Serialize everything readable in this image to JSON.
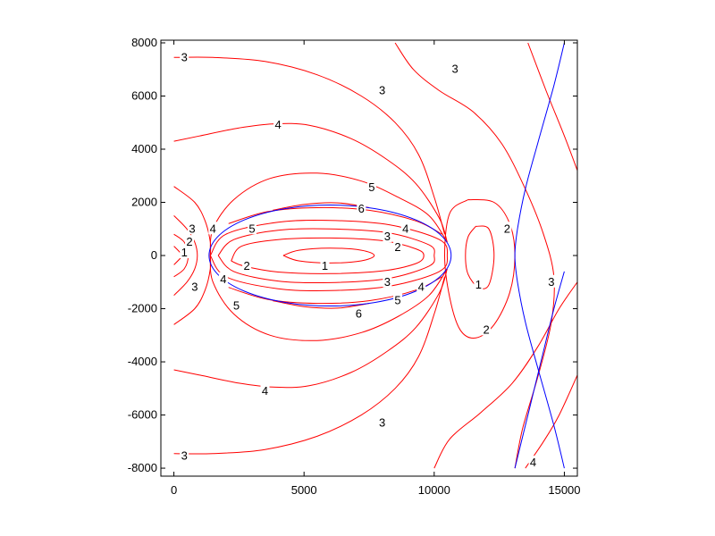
{
  "chart_data": {
    "type": "contour",
    "title": "",
    "xlabel": "",
    "ylabel": "",
    "xlim": [
      -500,
      15500
    ],
    "ylim": [
      -8300,
      8100
    ],
    "x_ticks": [
      {
        "value": 0,
        "label": "0"
      },
      {
        "value": 5000,
        "label": "5000"
      },
      {
        "value": 10000,
        "label": "10000"
      },
      {
        "value": 15000,
        "label": "15000"
      }
    ],
    "y_ticks": [
      {
        "value": 8000,
        "label": "8000"
      },
      {
        "value": 6000,
        "label": "6000"
      },
      {
        "value": 4000,
        "label": "4000"
      },
      {
        "value": 2000,
        "label": "2000"
      },
      {
        "value": 0,
        "label": "0"
      },
      {
        "value": -2000,
        "label": "-2000"
      },
      {
        "value": -4000,
        "label": "-4000"
      },
      {
        "value": -6000,
        "label": "-6000"
      },
      {
        "value": -8000,
        "label": "-8000"
      }
    ],
    "grid": false,
    "colors": {
      "contour": "#ff0000",
      "boundary": "#0000ff",
      "axes": "#000000"
    },
    "boundary_ellipse": {
      "cx": 6000,
      "cy": 0,
      "rx": 4650,
      "ry": 1900
    },
    "boundary_curves": [
      {
        "name": "",
        "points": [
          [
            15000,
            8000
          ],
          [
            14600,
            6400
          ],
          [
            14000,
            4300
          ],
          [
            13500,
            2500
          ],
          [
            13200,
            1000
          ],
          [
            13100,
            0
          ],
          [
            13200,
            -1000
          ],
          [
            13500,
            -2500
          ],
          [
            14000,
            -4300
          ],
          [
            14600,
            -6400
          ],
          [
            15000,
            -8000
          ]
        ]
      },
      {
        "name": "",
        "points": [
          [
            13100,
            -8000
          ],
          [
            13600,
            -6000
          ],
          [
            14100,
            -4000
          ],
          [
            14600,
            -2000
          ],
          [
            15000,
            -600
          ]
        ]
      }
    ],
    "contours": [
      {
        "level": 1,
        "points": [
          [
            4200,
            0
          ],
          [
            4800,
            200
          ],
          [
            6000,
            280
          ],
          [
            7200,
            200
          ],
          [
            7700,
            0
          ],
          [
            7200,
            -200
          ],
          [
            6000,
            -280
          ],
          [
            4800,
            -200
          ],
          [
            4200,
            0
          ]
        ]
      },
      {
        "level": 2,
        "points": [
          [
            2200,
            -200
          ],
          [
            2600,
            350
          ],
          [
            4000,
            600
          ],
          [
            6000,
            660
          ],
          [
            8000,
            560
          ],
          [
            9300,
            250
          ],
          [
            9600,
            0
          ],
          [
            9300,
            -300
          ],
          [
            8000,
            -580
          ],
          [
            6000,
            -680
          ],
          [
            4000,
            -620
          ],
          [
            2700,
            -400
          ],
          [
            2200,
            -200
          ]
        ]
      },
      {
        "level": 3,
        "points": [
          [
            1700,
            0
          ],
          [
            2300,
            600
          ],
          [
            4000,
            950
          ],
          [
            6000,
            1000
          ],
          [
            8200,
            860
          ],
          [
            9800,
            400
          ],
          [
            10000,
            0
          ],
          [
            9800,
            -400
          ],
          [
            8200,
            -870
          ],
          [
            6000,
            -1020
          ],
          [
            4000,
            -960
          ],
          [
            2300,
            -600
          ],
          [
            1700,
            0
          ]
        ]
      },
      {
        "level": 4,
        "points": [
          [
            1400,
            0
          ],
          [
            2000,
            800
          ],
          [
            4000,
            1250
          ],
          [
            6000,
            1320
          ],
          [
            8300,
            1150
          ],
          [
            10200,
            600
          ],
          [
            10500,
            0
          ],
          [
            10200,
            -600
          ],
          [
            8300,
            -1150
          ],
          [
            6000,
            -1320
          ],
          [
            4000,
            -1250
          ],
          [
            2000,
            -800
          ],
          [
            1400,
            0
          ]
        ]
      },
      {
        "level": 5,
        "points": [
          [
            2100,
            1200
          ],
          [
            3600,
            1650
          ],
          [
            5500,
            1800
          ],
          [
            7500,
            1700
          ],
          [
            9300,
            1300
          ],
          [
            10300,
            800
          ]
        ]
      },
      {
        "level": 5,
        "points": [
          [
            2100,
            -1200
          ],
          [
            3600,
            -1650
          ],
          [
            5500,
            -1800
          ],
          [
            7500,
            -1700
          ],
          [
            9300,
            -1300
          ],
          [
            10300,
            -800
          ]
        ]
      },
      {
        "level": 5,
        "points": [
          [
            1400,
            0
          ],
          [
            1500,
            1000
          ],
          [
            2300,
            2100
          ],
          [
            3700,
            2900
          ],
          [
            5500,
            3100
          ],
          [
            7200,
            2800
          ],
          [
            8600,
            2200
          ],
          [
            9800,
            1500
          ],
          [
            10500,
            500
          ]
        ]
      },
      {
        "level": 5,
        "points": [
          [
            1400,
            0
          ],
          [
            1500,
            -1000
          ],
          [
            2300,
            -2200
          ],
          [
            3700,
            -3000
          ],
          [
            5500,
            -3200
          ],
          [
            7200,
            -2900
          ],
          [
            8600,
            -2300
          ],
          [
            9800,
            -1500
          ],
          [
            10500,
            -500
          ]
        ]
      },
      {
        "level": 6,
        "points": [
          [
            3800,
            1700
          ],
          [
            5000,
            1920
          ],
          [
            6300,
            1980
          ],
          [
            7500,
            1800
          ]
        ]
      },
      {
        "level": 6,
        "points": [
          [
            3800,
            -1700
          ],
          [
            5000,
            -1920
          ],
          [
            6300,
            -1980
          ],
          [
            7500,
            -1800
          ]
        ]
      },
      {
        "level": 4,
        "points": [
          [
            0,
            4300
          ],
          [
            1000,
            4500
          ],
          [
            2500,
            4800
          ],
          [
            3800,
            4950
          ],
          [
            5200,
            4900
          ],
          [
            6800,
            4400
          ],
          [
            8200,
            3600
          ],
          [
            9300,
            2700
          ],
          [
            10200,
            1400
          ],
          [
            10500,
            500
          ]
        ]
      },
      {
        "level": 4,
        "points": [
          [
            0,
            -4300
          ],
          [
            1000,
            -4500
          ],
          [
            2500,
            -4800
          ],
          [
            3800,
            -4950
          ],
          [
            5200,
            -4900
          ],
          [
            6800,
            -4400
          ],
          [
            8200,
            -3600
          ],
          [
            9300,
            -2700
          ],
          [
            10200,
            -1400
          ],
          [
            10500,
            -500
          ]
        ]
      },
      {
        "level": 4,
        "points": [
          [
            0,
            2600
          ],
          [
            800,
            2000
          ],
          [
            1200,
            1300
          ],
          [
            1400,
            500
          ],
          [
            1400,
            0
          ],
          [
            1400,
            -500
          ],
          [
            1200,
            -1300
          ],
          [
            800,
            -2000
          ],
          [
            0,
            -2600
          ]
        ]
      },
      {
        "level": 3,
        "points": [
          [
            0,
            7450
          ],
          [
            1500,
            7450
          ],
          [
            3500,
            7300
          ],
          [
            5500,
            6800
          ],
          [
            7200,
            6000
          ],
          [
            8500,
            5000
          ],
          [
            9400,
            3800
          ],
          [
            10000,
            2200
          ],
          [
            10400,
            800
          ]
        ]
      },
      {
        "level": 3,
        "points": [
          [
            0,
            -7450
          ],
          [
            1500,
            -7450
          ],
          [
            3500,
            -7300
          ],
          [
            5500,
            -6800
          ],
          [
            7200,
            -6000
          ],
          [
            8500,
            -5000
          ],
          [
            9400,
            -3800
          ],
          [
            10000,
            -2200
          ],
          [
            10400,
            -800
          ]
        ]
      },
      {
        "level": 3,
        "points": [
          [
            0,
            1500
          ],
          [
            500,
            1000
          ],
          [
            800,
            500
          ],
          [
            900,
            0
          ],
          [
            800,
            -500
          ],
          [
            500,
            -1000
          ],
          [
            0,
            -1500
          ]
        ]
      },
      {
        "level": 2,
        "points": [
          [
            0,
            800
          ],
          [
            400,
            500
          ],
          [
            550,
            0
          ],
          [
            400,
            -500
          ],
          [
            0,
            -800
          ]
        ]
      },
      {
        "level": 1,
        "points": [
          [
            0,
            350
          ],
          [
            250,
            100
          ],
          [
            300,
            0
          ],
          [
            250,
            -100
          ],
          [
            0,
            -350
          ]
        ]
      },
      {
        "level": 3,
        "points": [
          [
            8500,
            8000
          ],
          [
            9200,
            7000
          ],
          [
            10200,
            6200
          ],
          [
            11500,
            5400
          ],
          [
            12600,
            4200
          ],
          [
            13500,
            2500
          ],
          [
            14200,
            800
          ],
          [
            14600,
            -800
          ],
          [
            14500,
            -2500
          ],
          [
            14000,
            -4500
          ],
          [
            13400,
            -6500
          ],
          [
            13100,
            -8000
          ]
        ]
      },
      {
        "level": 3,
        "points": [
          [
            15500,
            3200
          ],
          [
            15000,
            4500
          ],
          [
            14300,
            6200
          ],
          [
            13600,
            8000
          ]
        ]
      },
      {
        "level": 2,
        "points": [
          [
            11300,
            2100
          ],
          [
            12300,
            2000
          ],
          [
            12900,
            1200
          ],
          [
            13100,
            0
          ],
          [
            12900,
            -1400
          ],
          [
            12300,
            -2600
          ],
          [
            11600,
            -3100
          ],
          [
            11000,
            -2800
          ],
          [
            10600,
            -1600
          ],
          [
            10400,
            0
          ],
          [
            10600,
            1600
          ],
          [
            11300,
            2100
          ]
        ]
      },
      {
        "level": 1,
        "points": [
          [
            11600,
            1100
          ],
          [
            12100,
            1000
          ],
          [
            12300,
            0
          ],
          [
            12100,
            -1100
          ],
          [
            11700,
            -1200
          ],
          [
            11300,
            -700
          ],
          [
            11200,
            0
          ],
          [
            11300,
            700
          ],
          [
            11600,
            1100
          ]
        ]
      },
      {
        "level": 3,
        "points": [
          [
            10000,
            -8000
          ],
          [
            10600,
            -6900
          ],
          [
            11800,
            -5900
          ],
          [
            13000,
            -4800
          ],
          [
            14000,
            -3400
          ],
          [
            14800,
            -2000
          ],
          [
            15500,
            -1000
          ]
        ]
      },
      {
        "level": 4,
        "points": [
          [
            13500,
            -8000
          ],
          [
            14200,
            -7000
          ],
          [
            14800,
            -6000
          ],
          [
            15500,
            -4500
          ]
        ]
      }
    ],
    "contour_labels": [
      {
        "text": "3",
        "x": 400,
        "y": 7450
      },
      {
        "text": "3",
        "x": 400,
        "y": -7550
      },
      {
        "text": "3",
        "x": 8000,
        "y": 6200
      },
      {
        "text": "3",
        "x": 10800,
        "y": 7000
      },
      {
        "text": "4",
        "x": 4000,
        "y": 4900
      },
      {
        "text": "4",
        "x": 3500,
        "y": -5100
      },
      {
        "text": "5",
        "x": 7600,
        "y": 2550
      },
      {
        "text": "5",
        "x": 2400,
        "y": -1900
      },
      {
        "text": "5",
        "x": 8600,
        "y": -1700
      },
      {
        "text": "6",
        "x": 7200,
        "y": 1750
      },
      {
        "text": "6",
        "x": 7100,
        "y": -2200
      },
      {
        "text": "5",
        "x": 3000,
        "y": 1000
      },
      {
        "text": "4",
        "x": 8900,
        "y": 1000
      },
      {
        "text": "3",
        "x": 8200,
        "y": 700
      },
      {
        "text": "2",
        "x": 8600,
        "y": 300
      },
      {
        "text": "1",
        "x": 5800,
        "y": -400
      },
      {
        "text": "2",
        "x": 2800,
        "y": -400
      },
      {
        "text": "3",
        "x": 8200,
        "y": -1000
      },
      {
        "text": "4",
        "x": 9500,
        "y": -1200
      },
      {
        "text": "4",
        "x": 1500,
        "y": 1000
      },
      {
        "text": "4",
        "x": 1900,
        "y": -900
      },
      {
        "text": "3",
        "x": 700,
        "y": 1000
      },
      {
        "text": "2",
        "x": 600,
        "y": 500
      },
      {
        "text": "1",
        "x": 400,
        "y": 100
      },
      {
        "text": "3",
        "x": 800,
        "y": -1200
      },
      {
        "text": "2",
        "x": 12800,
        "y": 1000
      },
      {
        "text": "1",
        "x": 11700,
        "y": -1100
      },
      {
        "text": "2",
        "x": 12000,
        "y": -2800
      },
      {
        "text": "3",
        "x": 14500,
        "y": -1000
      },
      {
        "text": "3",
        "x": 8000,
        "y": -6300
      },
      {
        "text": "4",
        "x": 13800,
        "y": -7800
      }
    ]
  }
}
